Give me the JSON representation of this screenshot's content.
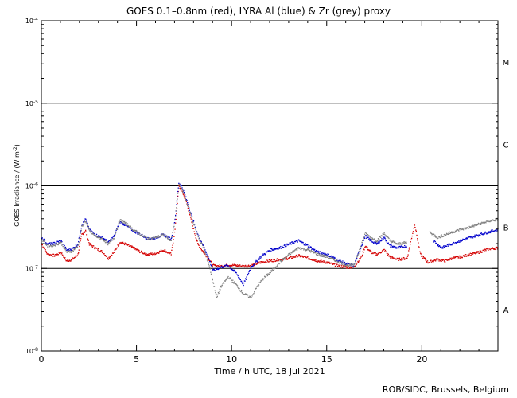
{
  "chart_data": {
    "type": "scatter",
    "title": "GOES 0.1–0.8nm (red), LYRA Al (blue) & Zr (grey) proxy",
    "xlabel": "Time / h UTC, 18 Jul 2021",
    "ylabel": "GOES Irradiance / (W m",
    "ylabel_sup": "-2",
    "ylabel_close": ")",
    "x_range": [
      0,
      24
    ],
    "y_log_range": [
      -8,
      -4
    ],
    "x_ticks": [
      0,
      5,
      10,
      15,
      20
    ],
    "y_ticks": [
      {
        "value": -8,
        "base": "10",
        "exp": "-8"
      },
      {
        "value": -7,
        "base": "10",
        "exp": "-7"
      },
      {
        "value": -6,
        "base": "10",
        "exp": "-6"
      },
      {
        "value": -5,
        "base": "10",
        "exp": "-5"
      },
      {
        "value": -4,
        "base": "10",
        "exp": "-4"
      }
    ],
    "flare_class_lines": [
      -7,
      -6,
      -5
    ],
    "flare_classes": [
      {
        "label": "A",
        "log_center": -7.5
      },
      {
        "label": "B",
        "log_center": -6.5
      },
      {
        "label": "C",
        "log_center": -5.5
      },
      {
        "label": "M",
        "log_center": -4.5
      }
    ],
    "series": [
      {
        "key": "goes",
        "color": "#d40000",
        "points": [
          [
            0,
            2e-07
          ],
          [
            0.3,
            1.5e-07
          ],
          [
            0.7,
            1.45e-07
          ],
          [
            1.0,
            1.6e-07
          ],
          [
            1.3,
            1.25e-07
          ],
          [
            1.6,
            1.3e-07
          ],
          [
            1.9,
            1.5e-07
          ],
          [
            2.1,
            2.6e-07
          ],
          [
            2.3,
            2.9e-07
          ],
          [
            2.5,
            2e-07
          ],
          [
            2.8,
            1.8e-07
          ],
          [
            3.2,
            1.6e-07
          ],
          [
            3.5,
            1.35e-07
          ],
          [
            3.8,
            1.6e-07
          ],
          [
            4.1,
            2.1e-07
          ],
          [
            4.4,
            2e-07
          ],
          [
            4.8,
            1.8e-07
          ],
          [
            5.2,
            1.6e-07
          ],
          [
            5.6,
            1.5e-07
          ],
          [
            6.0,
            1.55e-07
          ],
          [
            6.4,
            1.7e-07
          ],
          [
            6.8,
            1.5e-07
          ],
          [
            7.0,
            3e-07
          ],
          [
            7.2,
            1e-06
          ],
          [
            7.35,
            9e-07
          ],
          [
            7.6,
            6.5e-07
          ],
          [
            7.9,
            3.5e-07
          ],
          [
            8.2,
            2e-07
          ],
          [
            8.5,
            1.6e-07
          ],
          [
            8.8,
            1.3e-07
          ],
          [
            9.0,
            1.1e-07
          ],
          [
            9.4,
            1.08e-07
          ],
          [
            9.8,
            1.12e-07
          ],
          [
            10.2,
            1.1e-07
          ],
          [
            10.6,
            1.08e-07
          ],
          [
            11.0,
            1.1e-07
          ],
          [
            11.5,
            1.2e-07
          ],
          [
            12.0,
            1.25e-07
          ],
          [
            12.5,
            1.3e-07
          ],
          [
            13.0,
            1.35e-07
          ],
          [
            13.5,
            1.45e-07
          ],
          [
            14.0,
            1.35e-07
          ],
          [
            14.5,
            1.25e-07
          ],
          [
            15.0,
            1.2e-07
          ],
          [
            15.5,
            1.1e-07
          ],
          [
            16.0,
            1.05e-07
          ],
          [
            16.4,
            1.05e-07
          ],
          [
            16.8,
            1.4e-07
          ],
          [
            17.0,
            1.9e-07
          ],
          [
            17.3,
            1.6e-07
          ],
          [
            17.6,
            1.5e-07
          ],
          [
            18.0,
            1.7e-07
          ],
          [
            18.3,
            1.4e-07
          ],
          [
            18.7,
            1.3e-07
          ],
          [
            19.2,
            1.35e-07
          ],
          [
            19.6,
            3.5e-07
          ],
          [
            19.9,
            1.5e-07
          ],
          [
            20.3,
            1.2e-07
          ],
          [
            20.8,
            1.3e-07
          ],
          [
            21.2,
            1.25e-07
          ],
          [
            21.6,
            1.35e-07
          ],
          [
            22.0,
            1.4e-07
          ],
          [
            22.5,
            1.5e-07
          ],
          [
            23.0,
            1.6e-07
          ],
          [
            23.5,
            1.75e-07
          ],
          [
            24.0,
            1.8e-07
          ]
        ]
      },
      {
        "key": "lyra_al",
        "color": "#0000cc",
        "points": [
          [
            0,
            2.4e-07
          ],
          [
            0.3,
            2e-07
          ],
          [
            0.7,
            2.05e-07
          ],
          [
            1.0,
            2.2e-07
          ],
          [
            1.3,
            1.7e-07
          ],
          [
            1.6,
            1.75e-07
          ],
          [
            1.9,
            2e-07
          ],
          [
            2.1,
            3.4e-07
          ],
          [
            2.3,
            4e-07
          ],
          [
            2.5,
            3e-07
          ],
          [
            2.8,
            2.6e-07
          ],
          [
            3.2,
            2.4e-07
          ],
          [
            3.5,
            2.1e-07
          ],
          [
            3.8,
            2.5e-07
          ],
          [
            4.1,
            3.7e-07
          ],
          [
            4.4,
            3.4e-07
          ],
          [
            4.8,
            2.9e-07
          ],
          [
            5.2,
            2.6e-07
          ],
          [
            5.6,
            2.3e-07
          ],
          [
            6.0,
            2.4e-07
          ],
          [
            6.4,
            2.6e-07
          ],
          [
            6.8,
            2.3e-07
          ],
          [
            7.0,
            4e-07
          ],
          [
            7.2,
            1.1e-06
          ],
          [
            7.35,
            1e-06
          ],
          [
            7.6,
            7e-07
          ],
          [
            7.9,
            4.2e-07
          ],
          [
            8.2,
            2.6e-07
          ],
          [
            8.5,
            1.9e-07
          ],
          [
            8.8,
            1.3e-07
          ],
          [
            9.0,
            9.5e-08
          ],
          [
            9.4,
            1.05e-07
          ],
          [
            9.8,
            1.1e-07
          ],
          [
            10.2,
            9e-08
          ],
          [
            10.6,
            6.5e-08
          ],
          [
            11.0,
            1.05e-07
          ],
          [
            11.5,
            1.4e-07
          ],
          [
            12.0,
            1.7e-07
          ],
          [
            12.5,
            1.8e-07
          ],
          [
            13.0,
            2e-07
          ],
          [
            13.5,
            2.2e-07
          ],
          [
            14.0,
            1.9e-07
          ],
          [
            14.5,
            1.6e-07
          ],
          [
            15.0,
            1.5e-07
          ],
          [
            15.5,
            1.3e-07
          ],
          [
            16.0,
            1.15e-07
          ],
          [
            16.4,
            1.1e-07
          ],
          [
            16.8,
            1.9e-07
          ],
          [
            17.0,
            2.5e-07
          ],
          [
            17.3,
            2.2e-07
          ],
          [
            17.6,
            2e-07
          ],
          [
            18.0,
            2.4e-07
          ],
          [
            18.3,
            1.9e-07
          ],
          [
            18.7,
            1.8e-07
          ],
          [
            19.2,
            1.9e-07
          ],
          [
            20.6,
            2.2e-07
          ],
          [
            21.0,
            1.8e-07
          ],
          [
            21.5,
            2e-07
          ],
          [
            22.0,
            2.2e-07
          ],
          [
            22.5,
            2.4e-07
          ],
          [
            23.0,
            2.6e-07
          ],
          [
            23.5,
            2.8e-07
          ],
          [
            24.0,
            3e-07
          ]
        ]
      },
      {
        "key": "lyra_zr",
        "color": "#808080",
        "points": [
          [
            0,
            2.3e-07
          ],
          [
            0.3,
            1.9e-07
          ],
          [
            0.7,
            1.95e-07
          ],
          [
            1.0,
            2.1e-07
          ],
          [
            1.3,
            1.6e-07
          ],
          [
            1.6,
            1.65e-07
          ],
          [
            1.9,
            1.9e-07
          ],
          [
            2.1,
            3.2e-07
          ],
          [
            2.3,
            3.8e-07
          ],
          [
            2.5,
            2.9e-07
          ],
          [
            2.8,
            2.5e-07
          ],
          [
            3.2,
            2.3e-07
          ],
          [
            3.5,
            2e-07
          ],
          [
            3.8,
            2.4e-07
          ],
          [
            4.1,
            3.9e-07
          ],
          [
            4.4,
            3.6e-07
          ],
          [
            4.8,
            3e-07
          ],
          [
            5.2,
            2.6e-07
          ],
          [
            5.6,
            2.3e-07
          ],
          [
            6.0,
            2.4e-07
          ],
          [
            6.4,
            2.6e-07
          ],
          [
            6.8,
            2.2e-07
          ],
          [
            7.0,
            3.8e-07
          ],
          [
            7.2,
            1.05e-06
          ],
          [
            7.35,
            9.5e-07
          ],
          [
            7.6,
            6.6e-07
          ],
          [
            7.9,
            4e-07
          ],
          [
            8.2,
            2.5e-07
          ],
          [
            8.5,
            1.8e-07
          ],
          [
            8.8,
            1.1e-07
          ],
          [
            9.0,
            7e-08
          ],
          [
            9.2,
            4.5e-08
          ],
          [
            9.4,
            6e-08
          ],
          [
            9.8,
            8e-08
          ],
          [
            10.2,
            6.5e-08
          ],
          [
            10.6,
            5e-08
          ],
          [
            11.0,
            4.5e-08
          ],
          [
            11.3,
            6e-08
          ],
          [
            11.6,
            7.5e-08
          ],
          [
            12.0,
            9e-08
          ],
          [
            12.5,
            1.2e-07
          ],
          [
            13.0,
            1.5e-07
          ],
          [
            13.5,
            1.8e-07
          ],
          [
            14.0,
            1.7e-07
          ],
          [
            14.5,
            1.5e-07
          ],
          [
            15.0,
            1.4e-07
          ],
          [
            15.5,
            1.25e-07
          ],
          [
            16.0,
            1.12e-07
          ],
          [
            16.4,
            1.1e-07
          ],
          [
            16.8,
            2e-07
          ],
          [
            17.0,
            2.7e-07
          ],
          [
            17.3,
            2.4e-07
          ],
          [
            17.6,
            2.2e-07
          ],
          [
            18.0,
            2.7e-07
          ],
          [
            18.3,
            2.2e-07
          ],
          [
            18.7,
            2e-07
          ],
          [
            19.2,
            2.1e-07
          ],
          [
            20.4,
            2.8e-07
          ],
          [
            20.8,
            2.4e-07
          ],
          [
            21.2,
            2.6e-07
          ],
          [
            21.6,
            2.8e-07
          ],
          [
            22.0,
            3e-07
          ],
          [
            22.5,
            3.2e-07
          ],
          [
            23.0,
            3.5e-07
          ],
          [
            23.5,
            3.8e-07
          ],
          [
            24.0,
            4e-07
          ]
        ]
      }
    ]
  },
  "credit": "ROB/SIDC, Brussels, Belgium"
}
